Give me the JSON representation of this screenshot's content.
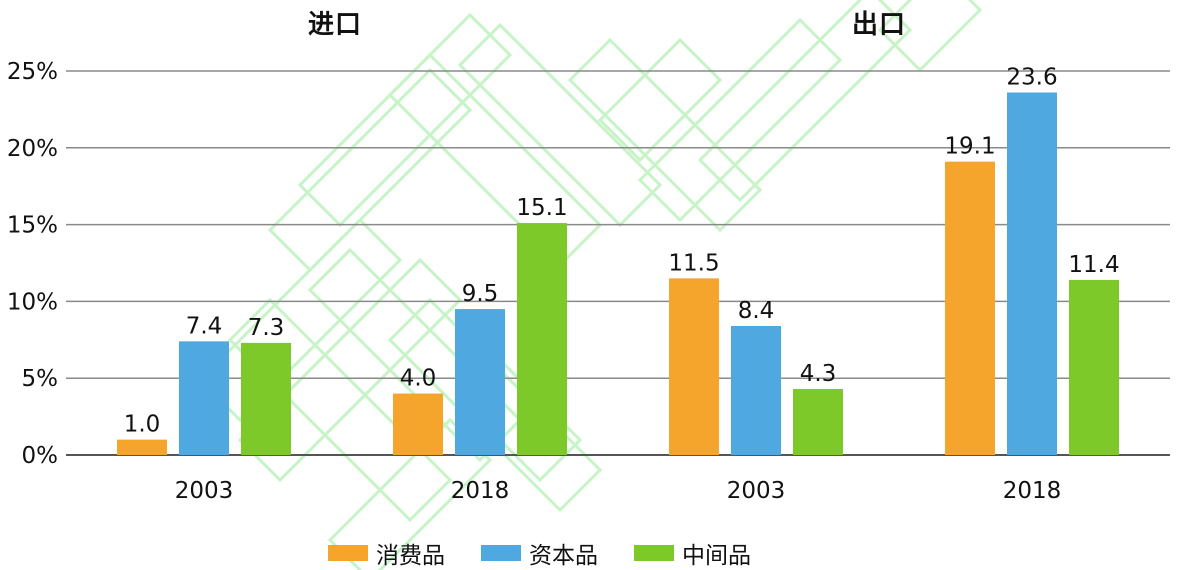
{
  "chart_data": {
    "type": "bar",
    "groups": [
      {
        "title": "进口",
        "categories": [
          "2003",
          "2018"
        ],
        "series": [
          {
            "name": "消费品",
            "values": [
              1.0,
              4.0
            ]
          },
          {
            "name": "资本品",
            "values": [
              7.4,
              9.5
            ]
          },
          {
            "name": "中间品",
            "values": [
              7.3,
              15.1
            ]
          }
        ]
      },
      {
        "title": "出口",
        "categories": [
          "2003",
          "2018"
        ],
        "series": [
          {
            "name": "消费品",
            "values": [
              11.5,
              19.1
            ]
          },
          {
            "name": "资本品",
            "values": [
              8.4,
              23.6
            ]
          },
          {
            "name": "中间品",
            "values": [
              4.3,
              11.4
            ]
          }
        ]
      }
    ],
    "yticks": [
      "0%",
      "5%",
      "10%",
      "15%",
      "20%",
      "25%"
    ],
    "ylim": [
      0,
      25
    ],
    "grid": true,
    "legend_position": "bottom",
    "colors": {
      "消费品": "#F5A52B",
      "资本品": "#4FA8E0",
      "中间品": "#7CC929"
    }
  }
}
